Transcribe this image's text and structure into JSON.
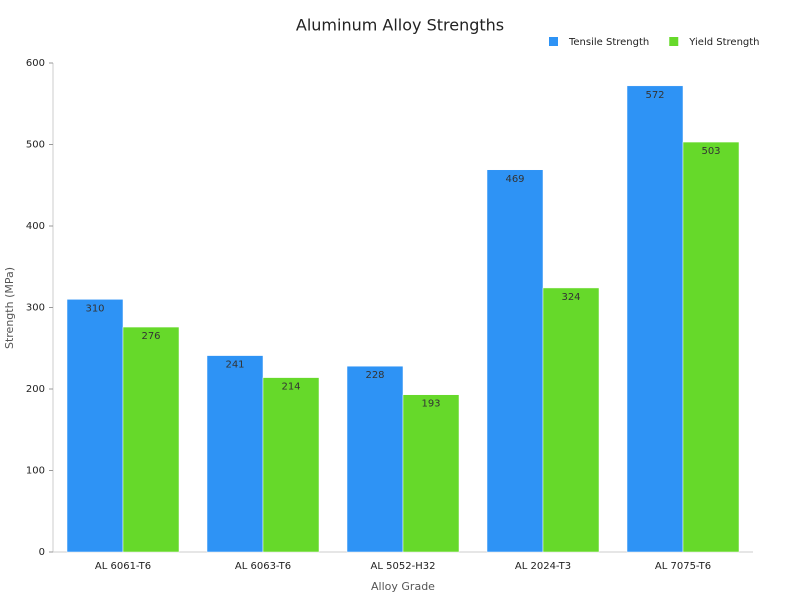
{
  "chart_data": {
    "type": "bar",
    "title": "Aluminum Alloy Strengths",
    "x_label": "Alloy Grade",
    "y_label": "Strength (MPa)",
    "categories": [
      "AL 6061-T6",
      "AL 6063-T6",
      "AL 5052-H32",
      "AL 2024-T3",
      "AL 7075-T6"
    ],
    "series": [
      {
        "name": "Tensile Strength",
        "color": "#2e93f5",
        "values": [
          310,
          241,
          228,
          469,
          572
        ]
      },
      {
        "name": "Yield Strength",
        "color": "#66d92a",
        "values": [
          276,
          214,
          193,
          324,
          503
        ]
      }
    ],
    "ylim": [
      0,
      600
    ],
    "yticks": [
      0,
      100,
      200,
      300,
      400,
      500,
      600
    ],
    "grid": false,
    "legend": "top-right"
  }
}
